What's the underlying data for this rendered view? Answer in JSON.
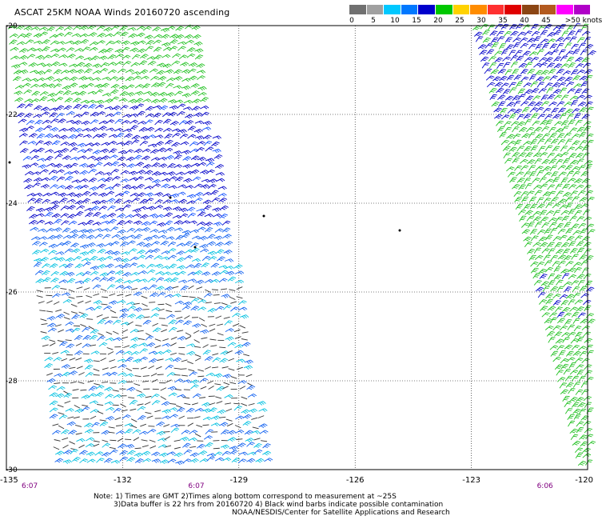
{
  "title": "ASCAT 25KM NOAA Winds 20160720 ascending",
  "colorbar": {
    "colors": [
      "#707070",
      "#a0a0a0",
      "#00c8ff",
      "#0078ff",
      "#0000cc",
      "#00c800",
      "#ffd200",
      "#ff8c00",
      "#ff3030",
      "#e00000",
      "#8b4513",
      "#b35a1f",
      "#ff00ff",
      "#b000c8"
    ],
    "labels": [
      {
        "text": "0",
        "at": 0
      },
      {
        "text": "5",
        "at": 1
      },
      {
        "text": "10",
        "at": 2
      },
      {
        "text": "15",
        "at": 3
      },
      {
        "text": "20",
        "at": 4
      },
      {
        "text": "25",
        "at": 5
      },
      {
        "text": "30",
        "at": 6
      },
      {
        "text": "35",
        "at": 7
      },
      {
        "text": "40",
        "at": 8
      },
      {
        "text": "45",
        "at": 9
      },
      {
        "text": ">50 knots",
        "at": 10
      }
    ]
  },
  "map": {
    "lon_range": [
      -135,
      -120
    ],
    "lat_range": [
      -30,
      -20
    ],
    "lon_grid": [
      -132,
      -129,
      -126,
      -123
    ],
    "lat_grid": [
      -22,
      -24,
      -26,
      -28
    ],
    "x_labels": [
      "-135",
      "-132",
      "-129",
      "-126",
      "-123",
      "-120"
    ],
    "lat_labels": [
      "-20",
      "-22",
      "-24",
      "-26",
      "-28",
      "-30"
    ],
    "time_labels": [
      {
        "text": "6:07",
        "lon": -134.4
      },
      {
        "text": "6:07",
        "lon": -130.1
      },
      {
        "text": "6:06",
        "lon": -121.1
      }
    ],
    "time_color": "#800080",
    "grid_style": "dotted"
  },
  "notes": {
    "line1": "Note: 1) Times are GMT 2)Times along bottom correspond to measurement at ~25S",
    "line2": "3)Data buffer is 22 hrs from 20160720 4) Black wind barbs indicate possible contamination",
    "line3": "NOAA/NESDIS/Center for Satellite Applications and Research"
  }
}
